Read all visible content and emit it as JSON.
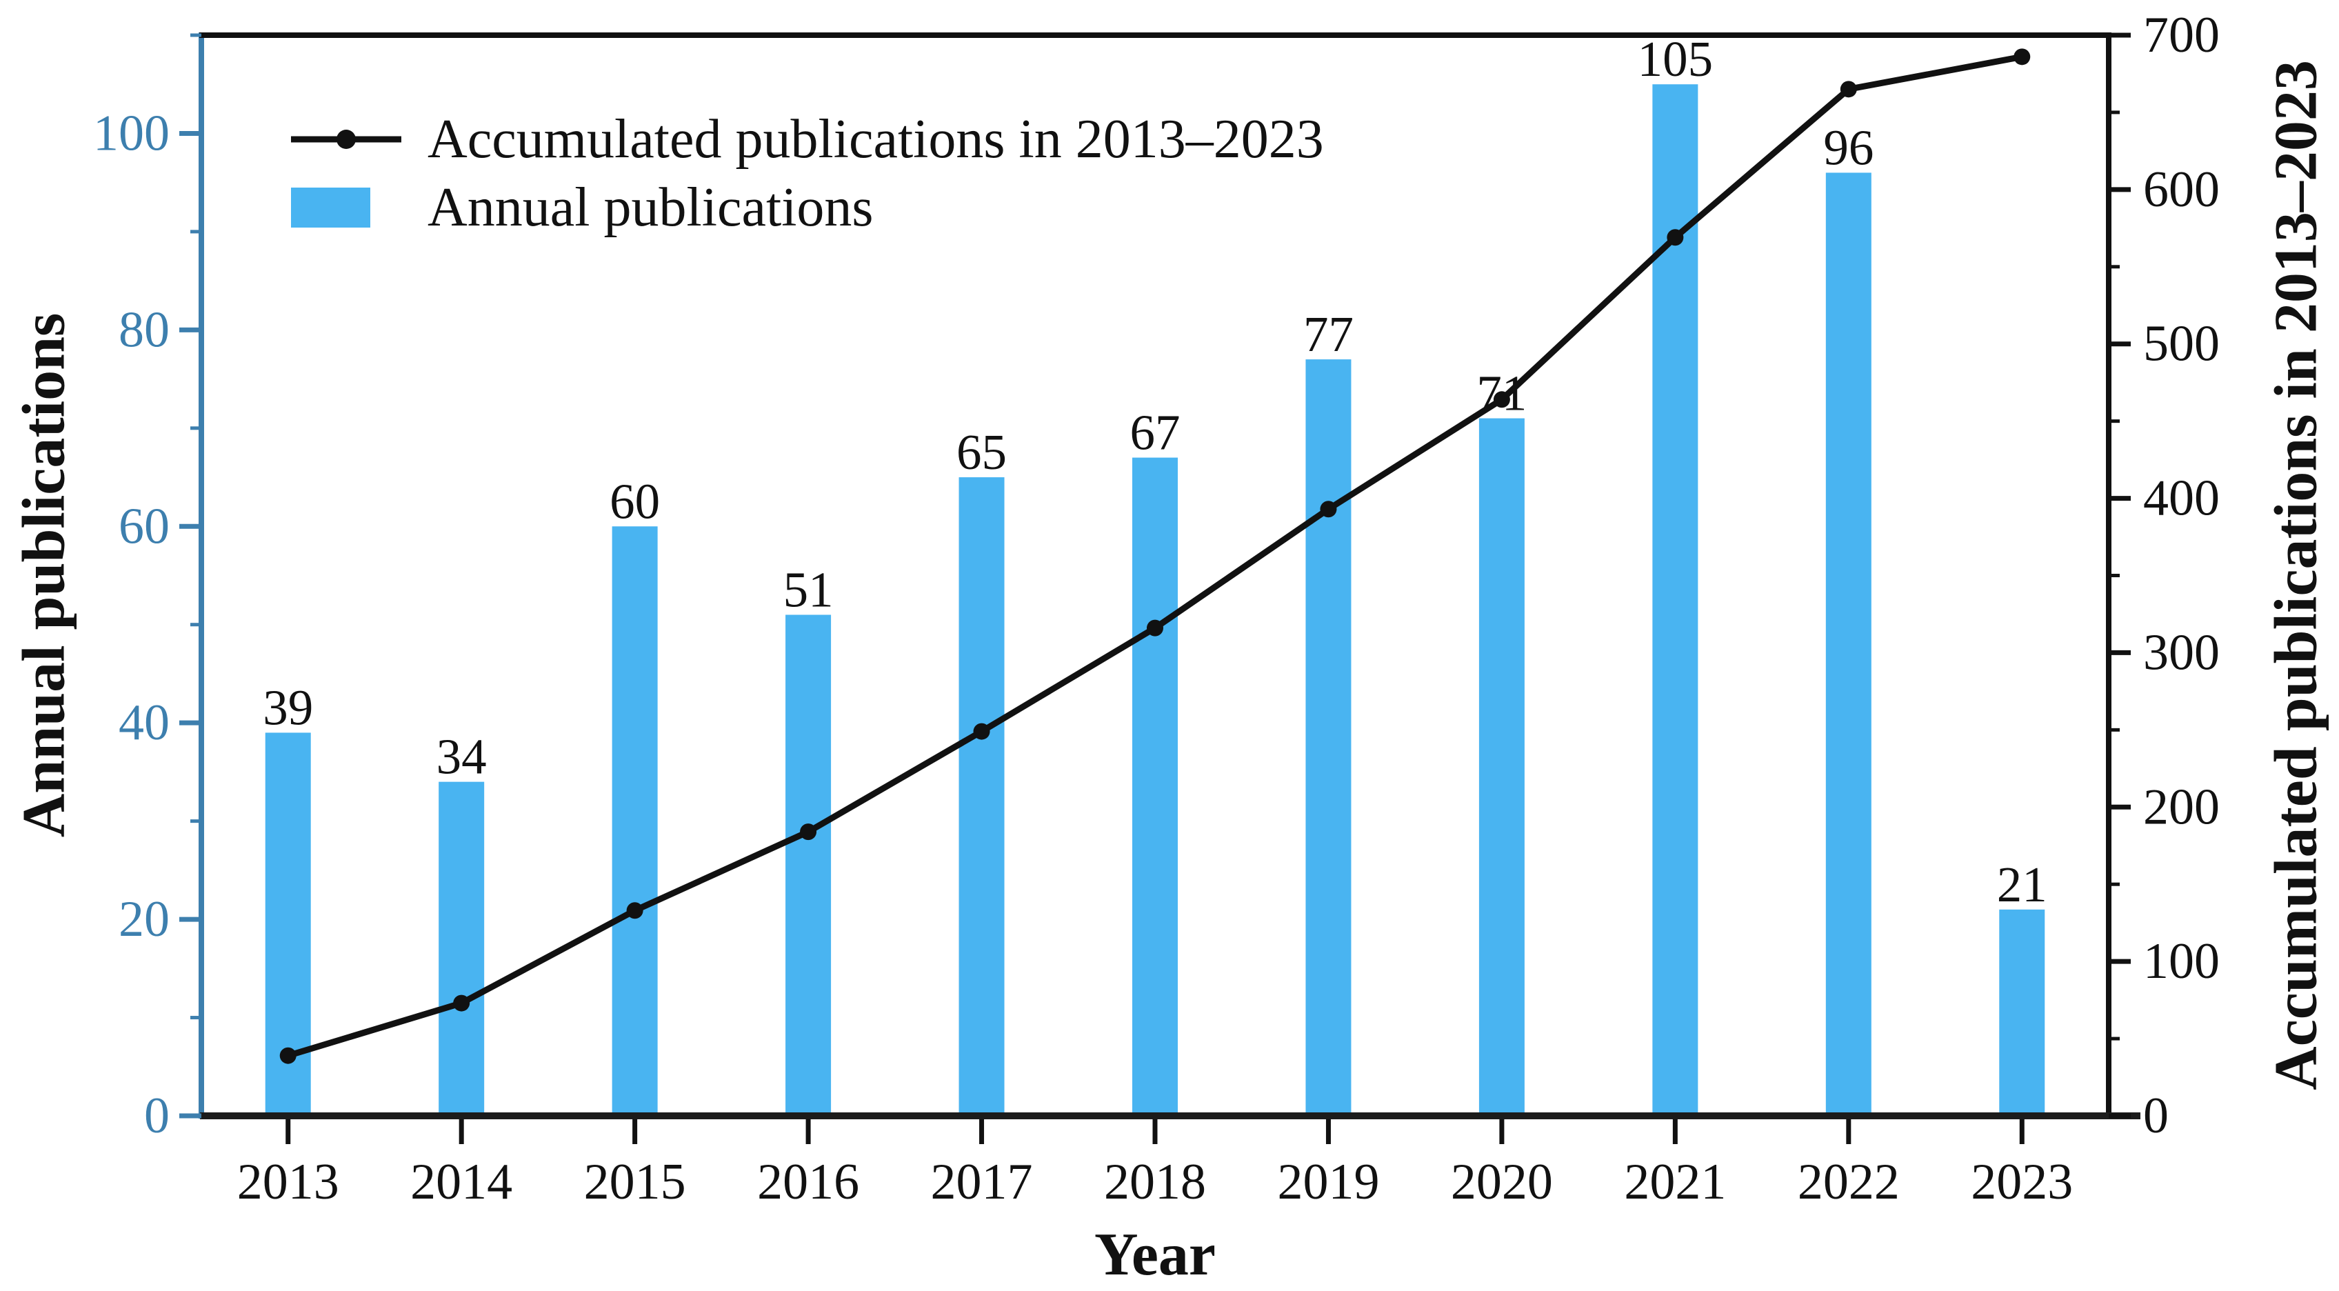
{
  "chart_data": {
    "type": "bar+line",
    "categories": [
      "2013",
      "2014",
      "2015",
      "2016",
      "2017",
      "2018",
      "2019",
      "2020",
      "2021",
      "2022",
      "2023"
    ],
    "series": [
      {
        "name": "Annual publications",
        "type": "bar",
        "axis": "left",
        "color": "#49b4f1",
        "values": [
          39,
          34,
          60,
          51,
          65,
          67,
          77,
          71,
          105,
          96,
          21
        ],
        "value_labels_shown": true
      },
      {
        "name": "Accumulated publications in 2013–2023",
        "type": "line",
        "axis": "right",
        "color": "#111111",
        "marker": "circle",
        "values": [
          39,
          73,
          133,
          184,
          249,
          316,
          393,
          464,
          569,
          665,
          686
        ]
      }
    ],
    "xlabel": "Year",
    "left_axis": {
      "label": "Annual publications",
      "color": "#3d7fae",
      "min": 0,
      "max": 110,
      "major_ticks": [
        0,
        20,
        40,
        60,
        80,
        100
      ],
      "minor_tick_step": 10
    },
    "right_axis": {
      "label": "Accumulated publications in 2013–2023",
      "color": "#111111",
      "min": 0,
      "max": 700,
      "major_ticks": [
        0,
        100,
        200,
        300,
        400,
        500,
        600,
        700
      ],
      "minor_tick_step": 50
    },
    "legend": {
      "position": "upper-left",
      "entries": [
        "Accumulated publications in 2013–2023",
        "Annual publications"
      ]
    },
    "grid": false,
    "background": "#ffffff"
  }
}
